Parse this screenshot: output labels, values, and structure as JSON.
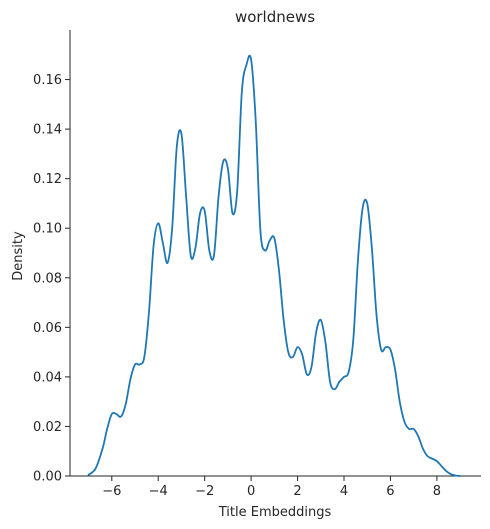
{
  "chart_data": {
    "type": "line",
    "title": "worldnews",
    "xlabel": "Title Embeddings",
    "ylabel": "Density",
    "xlim": [
      -7.8,
      9.9
    ],
    "ylim": [
      0,
      0.18
    ],
    "xticks": [
      -6,
      -4,
      -2,
      0,
      2,
      4,
      6,
      8
    ],
    "yticks": [
      0.0,
      0.02,
      0.04,
      0.06,
      0.08,
      0.1,
      0.12,
      0.14,
      0.16
    ],
    "ytick_labels": [
      "0.00",
      "0.02",
      "0.04",
      "0.06",
      "0.08",
      "0.10",
      "0.12",
      "0.14",
      "0.16"
    ],
    "grid": false,
    "color": "#1f77b4",
    "series": [
      {
        "x": [
          -7.0,
          -6.7,
          -6.4,
          -6.2,
          -6.0,
          -5.8,
          -5.6,
          -5.4,
          -5.2,
          -5.0,
          -4.8,
          -4.6,
          -4.4,
          -4.2,
          -4.0,
          -3.8,
          -3.6,
          -3.4,
          -3.2,
          -3.0,
          -2.8,
          -2.6,
          -2.4,
          -2.2,
          -2.0,
          -1.8,
          -1.6,
          -1.4,
          -1.2,
          -1.0,
          -0.8,
          -0.6,
          -0.4,
          -0.2,
          0.0,
          0.2,
          0.4,
          0.6,
          0.8,
          1.0,
          1.2,
          1.4,
          1.6,
          1.8,
          2.0,
          2.2,
          2.4,
          2.6,
          2.8,
          3.0,
          3.2,
          3.4,
          3.6,
          3.8,
          4.0,
          4.2,
          4.4,
          4.6,
          4.8,
          5.0,
          5.2,
          5.4,
          5.6,
          5.8,
          6.0,
          6.2,
          6.4,
          6.6,
          6.8,
          7.0,
          7.2,
          7.4,
          7.6,
          7.8,
          8.0,
          8.2,
          8.4,
          8.6,
          8.8,
          9.0
        ],
        "y": [
          0.0005,
          0.003,
          0.011,
          0.019,
          0.025,
          0.025,
          0.024,
          0.029,
          0.039,
          0.045,
          0.045,
          0.048,
          0.066,
          0.093,
          0.102,
          0.094,
          0.086,
          0.1,
          0.133,
          0.138,
          0.113,
          0.089,
          0.092,
          0.106,
          0.107,
          0.091,
          0.089,
          0.113,
          0.127,
          0.124,
          0.106,
          0.115,
          0.155,
          0.166,
          0.168,
          0.143,
          0.099,
          0.091,
          0.095,
          0.096,
          0.083,
          0.063,
          0.05,
          0.048,
          0.052,
          0.049,
          0.041,
          0.044,
          0.058,
          0.063,
          0.054,
          0.038,
          0.035,
          0.038,
          0.04,
          0.042,
          0.055,
          0.087,
          0.108,
          0.11,
          0.092,
          0.065,
          0.051,
          0.052,
          0.051,
          0.043,
          0.03,
          0.022,
          0.019,
          0.019,
          0.016,
          0.011,
          0.008,
          0.007,
          0.006,
          0.004,
          0.002,
          0.0008,
          0.0002,
          0.0
        ]
      }
    ]
  }
}
